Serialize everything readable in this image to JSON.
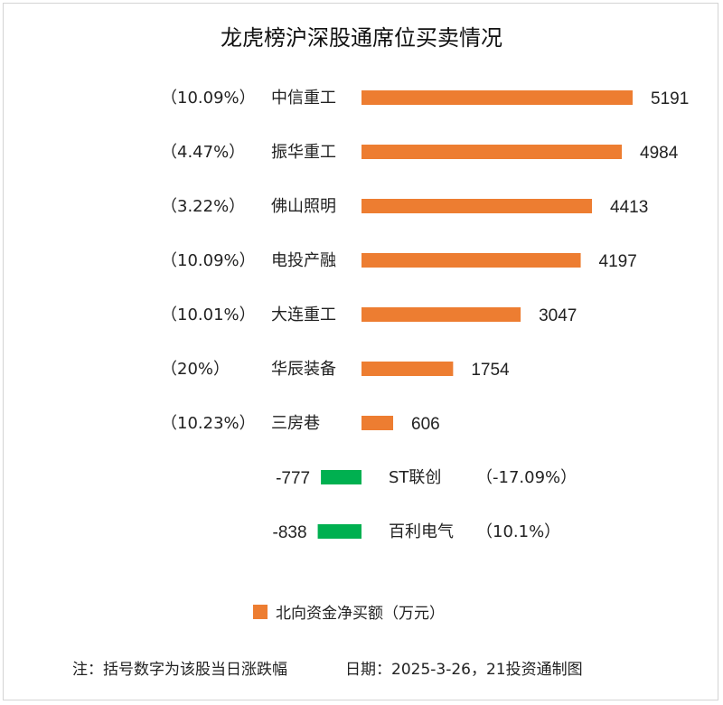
{
  "chart_data": {
    "type": "bar",
    "title": "龙虎榜沪深股通席位买卖情况",
    "unit": "万元",
    "legend": "北向资金净买额（万元）",
    "colors": {
      "positive": "#ED7D31",
      "negative": "#00B050"
    },
    "series": [
      {
        "name": "北向资金净买额（万元）",
        "categories": [
          "中信重工",
          "振华重工",
          "佛山照明",
          "电投产融",
          "大连重工",
          "华辰装备",
          "三房巷",
          "ST联创",
          "百利电气"
        ],
        "values": [
          5191,
          4984,
          4413,
          4197,
          3047,
          1754,
          606,
          -777,
          -838
        ]
      }
    ],
    "rows": [
      {
        "name": "中信重工",
        "value": 5191,
        "value_label": "5191",
        "pct": "（10.09%）"
      },
      {
        "name": "振华重工",
        "value": 4984,
        "value_label": "4984",
        "pct": "（4.47%）"
      },
      {
        "name": "佛山照明",
        "value": 4413,
        "value_label": "4413",
        "pct": "（3.22%）"
      },
      {
        "name": "电投产融",
        "value": 4197,
        "value_label": "4197",
        "pct": "（10.09%）"
      },
      {
        "name": "大连重工",
        "value": 3047,
        "value_label": "3047",
        "pct": "（10.01%）"
      },
      {
        "name": "华辰装备",
        "value": 1754,
        "value_label": "1754",
        "pct": "（20%）"
      },
      {
        "name": "三房巷",
        "value": 606,
        "value_label": "606",
        "pct": "（10.23%）"
      },
      {
        "name": "ST联创",
        "value": -777,
        "value_label": "-777",
        "pct": "（-17.09%）"
      },
      {
        "name": "百利电气",
        "value": -838,
        "value_label": "-838",
        "pct": "（10.1%）"
      }
    ],
    "grid": false,
    "legend_position": "bottom"
  },
  "footer": {
    "note": "注：括号数字为该股当日涨跌幅",
    "date_source": "日期：2025-3-26，21投资通制图"
  }
}
